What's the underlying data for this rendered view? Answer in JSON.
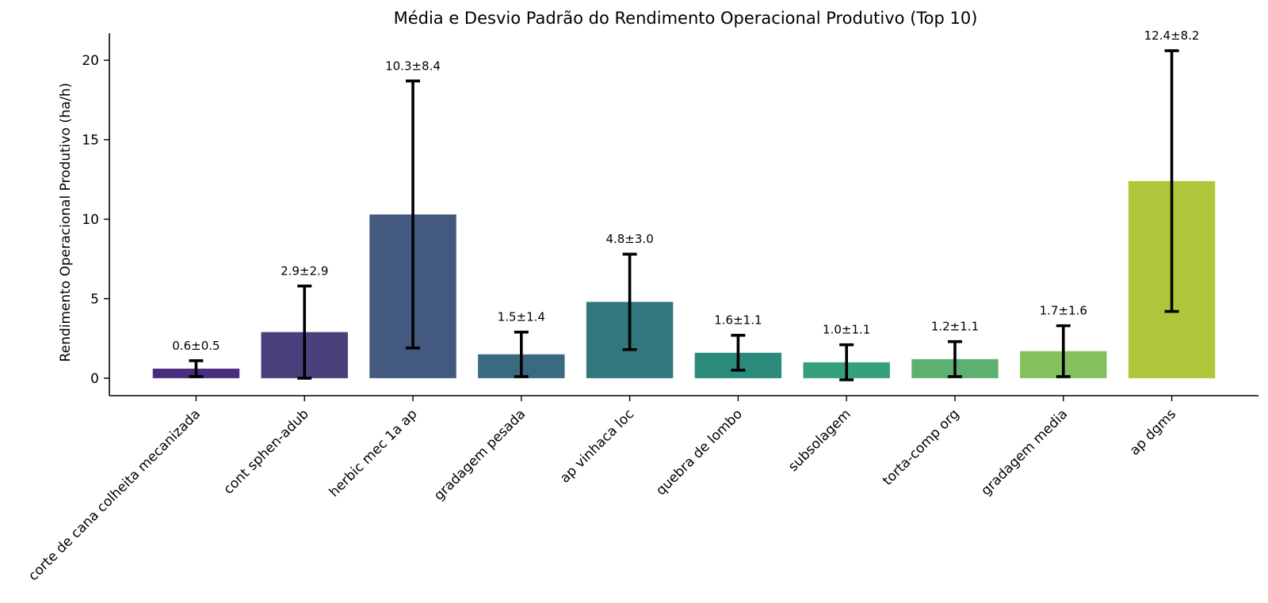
{
  "chart_data": {
    "type": "bar",
    "title": "Média e Desvio Padrão do Rendimento Operacional Produtivo (Top 10)",
    "xlabel": "",
    "ylabel": "Rendimento Operacional Produtivo (ha/h)",
    "ylim": [
      -1.1,
      21.7
    ],
    "yticks": [
      0,
      5,
      10,
      15,
      20
    ],
    "grid": false,
    "legend": "none",
    "categories": [
      "corte de cana colheita mecanizada",
      "cont sphen-adub",
      "herbic mec 1a ap",
      "gradagem pesada",
      "ap vinhaca loc",
      "quebra de lombo",
      "subsolagem",
      "torta-comp org",
      "gradagem media",
      "ap dgms"
    ],
    "values": [
      0.6,
      2.9,
      10.3,
      1.5,
      4.8,
      1.6,
      1.0,
      1.2,
      1.7,
      12.4
    ],
    "std": [
      0.5,
      2.9,
      8.4,
      1.4,
      3.0,
      1.1,
      1.1,
      1.1,
      1.6,
      8.2
    ],
    "data_labels": [
      "0.6±0.5",
      "2.9±2.9",
      "10.3±8.4",
      "1.5±1.4",
      "4.8±3.0",
      "1.6±1.1",
      "1.0±1.1",
      "1.2±1.1",
      "1.7±1.6",
      "12.4±8.2"
    ],
    "colors": [
      "#472d7b",
      "#4a3f7b",
      "#44597f",
      "#3a6a80",
      "#31787d",
      "#2b8a7a",
      "#36a079",
      "#5cb170",
      "#84c15c",
      "#b0c63a"
    ]
  }
}
